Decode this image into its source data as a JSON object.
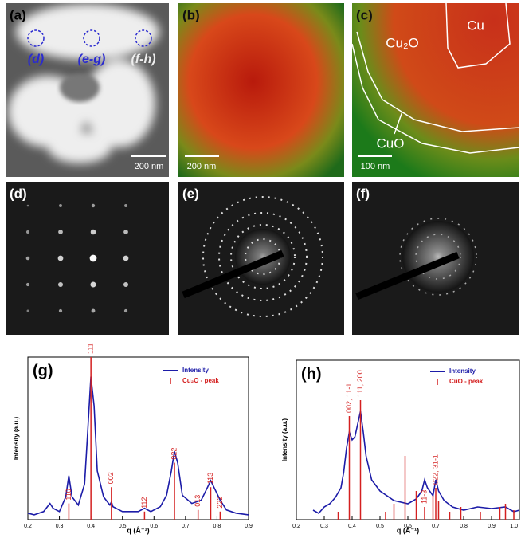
{
  "panels": [
    {
      "label": "(a)",
      "texts": [
        "(d)",
        "(e-g)",
        "(f-h)",
        "200 nm"
      ]
    },
    {
      "label": "(b)",
      "texts": [
        "200 nm"
      ]
    },
    {
      "label": "(c)",
      "texts": [
        "Cu₂O",
        "Cu",
        "CuO",
        "100 nm"
      ]
    },
    {
      "label": "(d)"
    },
    {
      "label": "(e)"
    },
    {
      "label": "(f)"
    }
  ],
  "chart_data": [
    {
      "type": "line",
      "title": "(g)",
      "x_label": "q (Å⁻¹)",
      "y_label": "Intensity (a.u.)",
      "xlim": [
        0.2,
        0.9
      ],
      "xticks": [
        0.2,
        0.3,
        0.4,
        0.5,
        0.6,
        0.7,
        0.8,
        0.9
      ],
      "ylim": [
        0,
        100
      ],
      "series": [
        {
          "name": "Intensity",
          "color": "#1c1ca8",
          "style": "line",
          "x": [
            0.2,
            0.22,
            0.25,
            0.27,
            0.28,
            0.3,
            0.32,
            0.33,
            0.34,
            0.36,
            0.38,
            0.39,
            0.4,
            0.41,
            0.42,
            0.44,
            0.46,
            0.465,
            0.47,
            0.5,
            0.55,
            0.57,
            0.59,
            0.62,
            0.64,
            0.655,
            0.665,
            0.675,
            0.69,
            0.72,
            0.75,
            0.77,
            0.78,
            0.79,
            0.81,
            0.83,
            0.86,
            0.9
          ],
          "values": [
            4,
            3,
            5,
            10,
            7,
            5,
            14,
            27,
            14,
            9,
            22,
            55,
            88,
            70,
            30,
            14,
            9,
            11,
            8,
            5,
            5,
            7,
            5,
            8,
            15,
            30,
            42,
            35,
            15,
            10,
            12,
            20,
            24,
            20,
            12,
            6,
            4,
            3
          ]
        },
        {
          "name": "Cu₂O - peak",
          "color": "#d42020",
          "style": "stem",
          "x": [
            0.33,
            0.4,
            0.465,
            0.57,
            0.665,
            0.74,
            0.78,
            0.81
          ],
          "values": [
            10,
            100,
            20,
            5,
            35,
            6,
            20,
            5
          ],
          "labels": [
            "110",
            "111",
            "002",
            "112",
            "022",
            "013",
            "113",
            "222"
          ]
        }
      ]
    },
    {
      "type": "line",
      "title": "(h)",
      "x_label": "q (Å⁻¹)",
      "y_label": "Intensity (a.u.)",
      "xlim": [
        0.2,
        1.0
      ],
      "xticks": [
        0.2,
        0.3,
        0.4,
        0.5,
        0.6,
        0.7,
        0.8,
        0.9,
        {
          "value": 1,
          "label": "1.0"
        }
      ],
      "ylim": [
        0,
        100
      ],
      "series": [
        {
          "name": "Intensity",
          "color": "#1c1ca8",
          "style": "line",
          "x": [
            0.26,
            0.28,
            0.3,
            0.32,
            0.34,
            0.36,
            0.37,
            0.38,
            0.39,
            0.4,
            0.41,
            0.42,
            0.43,
            0.44,
            0.45,
            0.47,
            0.5,
            0.55,
            0.6,
            0.63,
            0.65,
            0.66,
            0.67,
            0.69,
            0.7,
            0.71,
            0.73,
            0.76,
            0.8,
            0.85,
            0.9,
            0.95,
            0.98,
            1.0
          ],
          "values": [
            6,
            4,
            8,
            10,
            14,
            20,
            30,
            45,
            55,
            50,
            52,
            60,
            68,
            55,
            40,
            25,
            18,
            12,
            10,
            13,
            18,
            25,
            20,
            15,
            25,
            18,
            12,
            8,
            6,
            8,
            7,
            8,
            5,
            6
          ]
        },
        {
          "name": "CuO - peak",
          "color": "#d42020",
          "style": "stem",
          "x": [
            0.35,
            0.39,
            0.43,
            0.52,
            0.55,
            0.59,
            0.63,
            0.66,
            0.69,
            0.7,
            0.71,
            0.75,
            0.79,
            0.86,
            0.93,
            0.95,
            0.98
          ],
          "values": [
            5,
            65,
            75,
            5,
            10,
            40,
            18,
            8,
            15,
            20,
            12,
            5,
            8,
            5,
            8,
            10,
            6
          ],
          "labels": [
            null,
            "002, 11-1",
            "111, 200",
            null,
            null,
            null,
            null,
            "11-3",
            null,
            "022, 31-1",
            null,
            null,
            null,
            null,
            null,
            null,
            null
          ]
        }
      ]
    }
  ]
}
